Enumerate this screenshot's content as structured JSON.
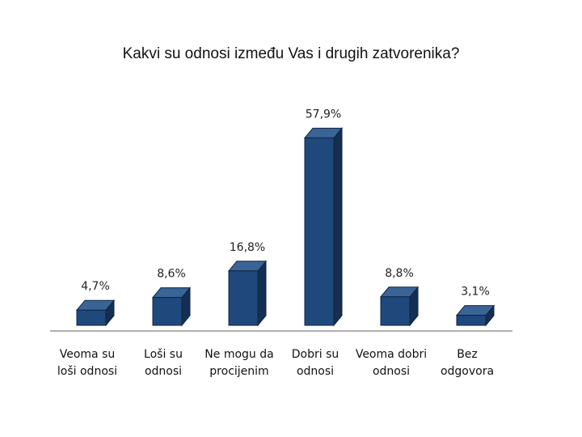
{
  "chart_data": {
    "type": "bar",
    "title": "Kakvi su odnosi između Vas i drugih zatvorenika?",
    "categories": [
      [
        "Veoma su",
        "loši odnosi"
      ],
      [
        "Loši su",
        "odnosi"
      ],
      [
        "Ne mogu da",
        "procijenim"
      ],
      [
        "Dobri su",
        "odnosi"
      ],
      [
        "Veoma dobri",
        "odnosi"
      ],
      [
        "Bez",
        "odgovora"
      ]
    ],
    "values": [
      4.7,
      8.6,
      16.8,
      57.9,
      8.8,
      3.1
    ],
    "value_labels": [
      "4,7%",
      "8,6%",
      "16,8%",
      "57,9%",
      "8,8%",
      "3,1%"
    ],
    "ylim": [
      0,
      60
    ],
    "grid": false,
    "legend": "none",
    "colors": {
      "front": "#1f497d",
      "side": "#142f52",
      "top": "#3a6496",
      "outline": "#0f2440",
      "baseline": "#808080"
    }
  }
}
